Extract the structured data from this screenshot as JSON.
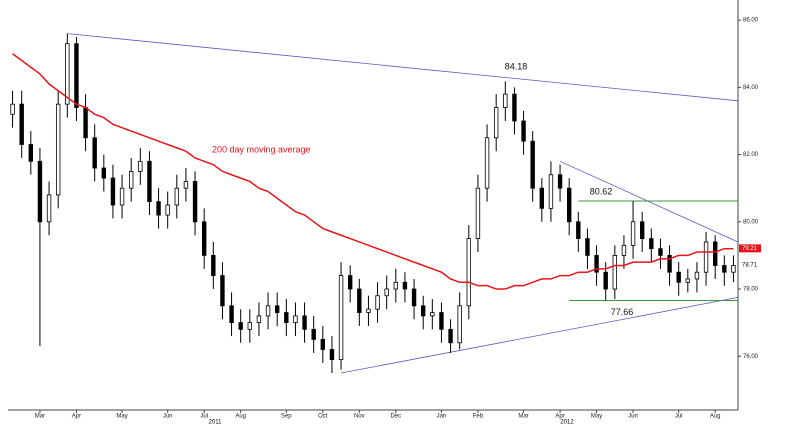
{
  "chart_data": {
    "type": "candlestick",
    "categories": [
      null,
      null,
      null,
      "Mar",
      null,
      null,
      null,
      "Apr",
      null,
      null,
      null,
      null,
      "May",
      null,
      null,
      null,
      null,
      "Jun",
      null,
      null,
      null,
      "Jul",
      null,
      null,
      null,
      "Aug",
      null,
      null,
      null,
      null,
      "Sep",
      null,
      null,
      null,
      "Oct",
      null,
      null,
      null,
      "Nov",
      null,
      null,
      null,
      "Dec",
      null,
      null,
      null,
      null,
      "Jan",
      null,
      null,
      null,
      "Feb",
      null,
      null,
      null,
      null,
      "Mar",
      null,
      null,
      null,
      "Apr",
      null,
      null,
      null,
      "May",
      null,
      null,
      null,
      "Jun",
      null,
      null,
      null,
      null,
      "Jul",
      null,
      null,
      null,
      "Aug",
      null,
      null
    ],
    "years": [
      "2011",
      "2012"
    ],
    "opens": [
      83.2,
      83.5,
      82.3,
      81.8,
      80.0,
      80.8,
      83.5,
      85.3,
      83.4,
      82.5,
      81.6,
      81.3,
      80.5,
      81.0,
      81.5,
      81.8,
      80.6,
      80.2,
      80.5,
      81.0,
      81.2,
      80.0,
      79.0,
      78.4,
      77.5,
      77.0,
      76.8,
      77.0,
      77.2,
      77.5,
      77.3,
      77.0,
      77.2,
      76.8,
      76.5,
      76.2,
      75.9,
      78.4,
      78.0,
      77.3,
      77.4,
      77.8,
      78.0,
      78.2,
      78.0,
      77.5,
      77.2,
      77.3,
      76.8,
      76.4,
      77.5,
      79.5,
      81.0,
      82.5,
      83.4,
      83.8,
      83.0,
      82.4,
      81.0,
      80.4,
      81.4,
      81.0,
      80.0,
      79.5,
      79.0,
      78.5,
      78.0,
      79.0,
      79.3,
      80.0,
      79.5,
      79.2,
      79.0,
      78.5,
      78.2,
      78.3,
      78.5,
      79.4,
      78.7,
      78.5
    ],
    "highs": [
      83.9,
      83.9,
      82.7,
      82.2,
      81.2,
      83.9,
      85.6,
      85.5,
      83.8,
      82.9,
      82.0,
      81.7,
      81.4,
      81.9,
      82.2,
      82.1,
      81.0,
      80.9,
      81.4,
      81.6,
      81.5,
      80.4,
      79.4,
      78.8,
      77.9,
      77.4,
      77.4,
      77.6,
      77.9,
      77.9,
      77.7,
      77.6,
      77.6,
      77.2,
      76.9,
      76.6,
      78.8,
      78.7,
      78.3,
      77.8,
      78.2,
      78.4,
      78.6,
      78.5,
      78.3,
      77.8,
      77.7,
      77.6,
      77.1,
      77.9,
      79.9,
      81.4,
      82.9,
      83.8,
      84.18,
      84.0,
      83.3,
      82.7,
      81.3,
      81.8,
      81.7,
      81.3,
      80.3,
      79.8,
      79.3,
      78.8,
      79.3,
      79.6,
      80.62,
      80.3,
      79.8,
      79.5,
      79.3,
      78.8,
      78.6,
      78.8,
      79.7,
      79.6,
      79.0,
      79.0
    ],
    "lows": [
      82.8,
      81.9,
      81.4,
      76.3,
      79.6,
      80.4,
      83.1,
      83.0,
      82.1,
      81.2,
      80.9,
      80.1,
      80.1,
      80.6,
      81.1,
      80.2,
      79.8,
      79.8,
      80.1,
      80.6,
      79.6,
      78.6,
      78.0,
      77.1,
      76.6,
      76.4,
      76.4,
      76.6,
      76.8,
      76.9,
      76.6,
      76.6,
      76.4,
      76.1,
      75.8,
      75.5,
      75.6,
      77.6,
      76.9,
      76.9,
      77.0,
      77.4,
      77.6,
      77.6,
      77.1,
      76.8,
      76.8,
      76.4,
      76.1,
      76.2,
      77.1,
      79.1,
      80.6,
      82.1,
      83.0,
      82.6,
      82.0,
      80.6,
      80.0,
      80.0,
      80.6,
      79.6,
      79.1,
      78.6,
      78.1,
      77.66,
      77.7,
      78.6,
      78.9,
      79.1,
      78.8,
      78.6,
      78.1,
      77.8,
      77.9,
      77.9,
      78.1,
      78.3,
      78.1,
      78.2
    ],
    "closes": [
      83.5,
      82.3,
      81.8,
      80.0,
      80.8,
      83.5,
      85.3,
      83.4,
      82.5,
      81.6,
      81.3,
      80.5,
      81.0,
      81.5,
      81.8,
      80.6,
      80.2,
      80.5,
      81.0,
      81.2,
      80.0,
      79.0,
      78.4,
      77.5,
      77.0,
      76.8,
      77.0,
      77.2,
      77.5,
      77.3,
      77.0,
      77.2,
      76.8,
      76.5,
      76.2,
      75.9,
      78.4,
      78.0,
      77.3,
      77.4,
      77.8,
      78.0,
      78.2,
      78.0,
      77.5,
      77.2,
      77.3,
      76.8,
      76.4,
      77.5,
      79.5,
      81.0,
      82.5,
      83.4,
      83.8,
      83.0,
      82.4,
      81.0,
      80.4,
      81.4,
      81.0,
      80.0,
      79.5,
      79.0,
      78.5,
      78.0,
      79.0,
      79.3,
      80.0,
      79.5,
      79.2,
      79.0,
      78.5,
      78.2,
      78.3,
      78.5,
      79.4,
      78.7,
      78.5,
      78.7
    ],
    "candle_color": "#000000",
    "moving_average": {
      "name": "200 day moving average",
      "color": "#e8151b",
      "values": [
        85.0,
        84.8,
        84.6,
        84.4,
        84.1,
        83.9,
        83.7,
        83.5,
        83.4,
        83.2,
        83.1,
        82.9,
        82.8,
        82.7,
        82.6,
        82.5,
        82.4,
        82.3,
        82.2,
        82.1,
        81.9,
        81.8,
        81.7,
        81.5,
        81.4,
        81.3,
        81.2,
        81.0,
        80.9,
        80.7,
        80.5,
        80.3,
        80.2,
        80.0,
        79.8,
        79.7,
        79.6,
        79.5,
        79.4,
        79.3,
        79.2,
        79.1,
        79.0,
        78.9,
        78.8,
        78.7,
        78.6,
        78.5,
        78.3,
        78.2,
        78.2,
        78.1,
        78.1,
        78.0,
        78.0,
        78.1,
        78.1,
        78.2,
        78.3,
        78.3,
        78.4,
        78.4,
        78.5,
        78.5,
        78.6,
        78.6,
        78.7,
        78.7,
        78.8,
        78.8,
        78.8,
        78.9,
        78.9,
        79.0,
        79.0,
        79.1,
        79.1,
        79.1,
        79.2,
        79.2
      ]
    },
    "trendlines": [
      {
        "color": "#5a5ac8",
        "from": 6,
        "to": 79,
        "values": [
          85.6,
          83.6
        ]
      },
      {
        "color": "#5a5ac8",
        "from": 36,
        "to": 79,
        "values": [
          75.5,
          77.75
        ]
      },
      {
        "color": "#5a5ac8",
        "from": 60,
        "to": 79,
        "values": [
          81.8,
          79.4
        ]
      }
    ],
    "levels": [
      {
        "color": "#3a9a3a",
        "from": 62,
        "to": 79,
        "value": 80.62
      },
      {
        "color": "#3a9a3a",
        "from": 61,
        "to": 79,
        "value": 77.66
      }
    ],
    "annotations": [
      {
        "label": "84.18",
        "value": 84.18
      },
      {
        "label": "80.62",
        "value": 80.62
      },
      {
        "label": "77.66",
        "value": 77.66
      }
    ],
    "last_labels": [
      {
        "label": "79.21",
        "value": 79.21,
        "color": "#e8151b"
      },
      {
        "label": "78.71",
        "value": 78.71,
        "color": "#ffffff"
      }
    ],
    "ylim": [
      74.4,
      86.6
    ],
    "yticks": [
      {
        "value": 76,
        "label": "76.00"
      },
      {
        "value": 78,
        "label": "78.00"
      },
      {
        "value": 80,
        "label": "80.00"
      },
      {
        "value": 82,
        "label": "82.00"
      },
      {
        "value": 84,
        "label": "84.00"
      },
      {
        "value": 86,
        "label": "86.00"
      }
    ]
  }
}
